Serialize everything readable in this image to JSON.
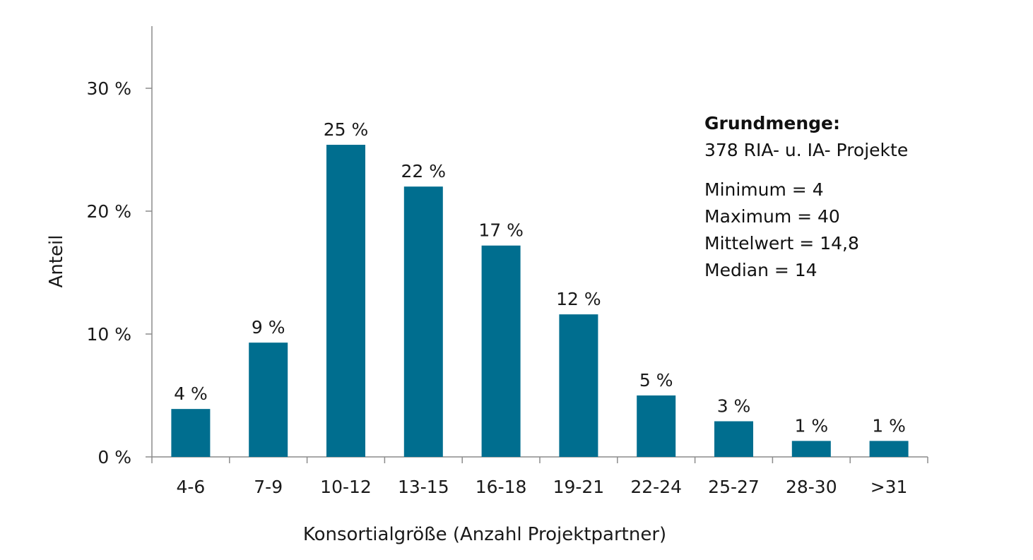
{
  "chart_data": {
    "type": "bar",
    "categories": [
      "4-6",
      "7-9",
      "10-12",
      "13-15",
      "16-18",
      "19-21",
      "22-24",
      "25-27",
      "28-30",
      ">31"
    ],
    "values": [
      3.9,
      9.3,
      25.4,
      22.0,
      17.2,
      11.6,
      5.0,
      2.9,
      1.3,
      1.3
    ],
    "data_labels": [
      "4 %",
      "9 %",
      "25 %",
      "22 %",
      "17 %",
      "12 %",
      "5 %",
      "3 %",
      "1 %",
      "1 %"
    ],
    "xlabel": "Konsortialgröße (Anzahl Projektpartner)",
    "ylabel": "Anteil",
    "ylim": [
      0,
      35
    ],
    "yticks": [
      0,
      10,
      20,
      30
    ],
    "ytick_labels": [
      "0 %",
      "10 %",
      "20 %",
      "30 %"
    ],
    "bar_color": "#006E8F",
    "axis_color": "#8c8c8c",
    "grid": false,
    "legend": null
  },
  "info_box": {
    "title": "Grundmenge:",
    "subtitle": "378 RIA- u. IA- Projekte",
    "stats": [
      "Minimum = 4",
      "Maximum = 40",
      "Mittelwert = 14,8",
      "Median = 14"
    ]
  }
}
